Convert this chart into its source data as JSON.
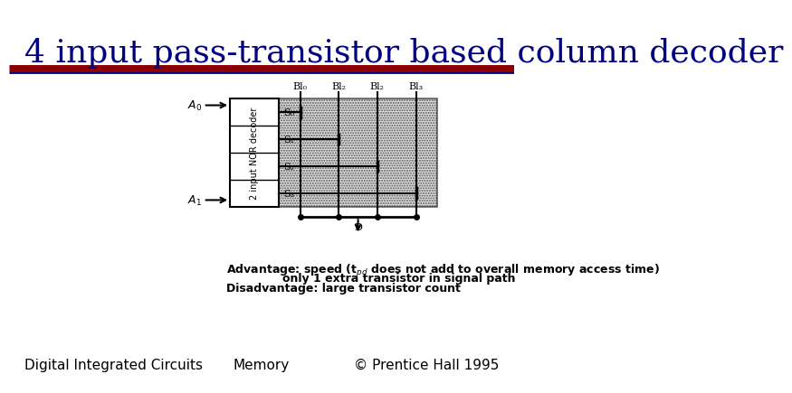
{
  "title": "4 input pass-transistor based column decoder",
  "title_color": "#000080",
  "title_fontsize": 26,
  "bg_color": "#ffffff",
  "sep_line1_color": "#8B0000",
  "sep_line2_color": "#000080",
  "footer_left": "Digital Integrated Circuits",
  "footer_center": "Memory",
  "footer_right": "© Prentice Hall 1995",
  "footer_color": "#000000",
  "footer_fontsize": 11,
  "notes_fontsize": 9,
  "line_color": "#000000",
  "shade_color": "#cccccc",
  "decoder_fill": "#ffffff",
  "bl_labels": [
    "Bl₀",
    "Bl₂",
    "Bl₂",
    "Bl₃"
  ],
  "row_labels": [
    "S₀",
    "S₁",
    "S₂",
    "S₃"
  ],
  "note1": "Advantage: speed (t",
  "note1b": "pd",
  "note1c": " does not add to overall memory access time)",
  "note2": "only 1 extra transistor in signal path",
  "note3": "Disadvantage: large transistor count"
}
